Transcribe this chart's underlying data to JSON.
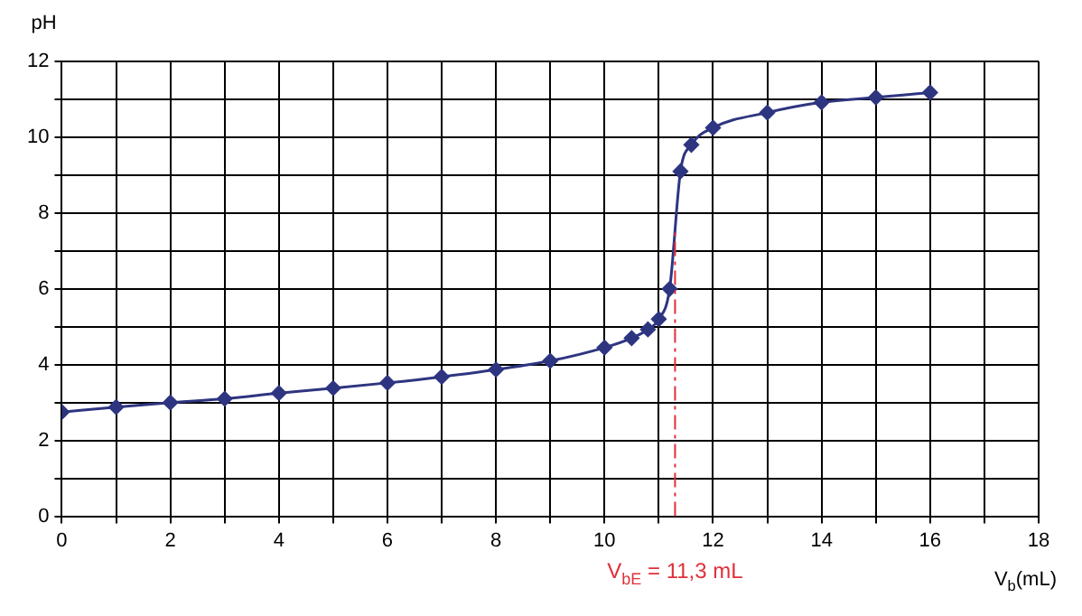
{
  "chart_data": {
    "type": "line",
    "xlabel": "V$_{b}$(mL)",
    "ylabel": "pH",
    "x": [
      0,
      1,
      2,
      3,
      4,
      5,
      6,
      7,
      8,
      9,
      10,
      10.5,
      10.8,
      11,
      11.2,
      11.4,
      11.6,
      12,
      13,
      14,
      15,
      16
    ],
    "series": [
      {
        "color": "#2e3580",
        "values": [
          2.75,
          2.88,
          3.0,
          3.1,
          3.25,
          3.38,
          3.52,
          3.68,
          3.87,
          4.1,
          4.45,
          4.7,
          4.93,
          5.2,
          6.0,
          9.1,
          9.8,
          10.25,
          10.65,
          10.92,
          11.05,
          11.18
        ]
      }
    ],
    "xlim": [
      0,
      18
    ],
    "ylim": [
      0,
      12
    ],
    "xticks": [
      0,
      {
        "value": 1,
        "label": null
      },
      2,
      {
        "value": 3,
        "label": null
      },
      4,
      {
        "value": 5,
        "label": null
      },
      6,
      {
        "value": 7,
        "label": null
      },
      8,
      {
        "value": 9,
        "label": null
      },
      10,
      {
        "value": 11,
        "label": null
      },
      12,
      {
        "value": 13,
        "label": null
      },
      14,
      {
        "value": 15,
        "label": null
      },
      16,
      {
        "value": 17,
        "label": null
      },
      18
    ],
    "yticks": [
      0,
      {
        "value": 1,
        "label": null
      },
      2,
      {
        "value": 3,
        "label": null
      },
      4,
      {
        "value": 5,
        "label": null
      },
      6,
      {
        "value": 7,
        "label": null
      },
      8,
      {
        "value": 9,
        "label": null
      },
      10,
      {
        "value": 11,
        "label": null
      },
      12
    ],
    "ref_lines": [
      {
        "axis": "x",
        "value": 11.3,
        "label": "V$_{bE}$ = 11,3 mL",
        "color": "#e0303a",
        "line_style": "dashdot"
      }
    ],
    "grid": true,
    "legend": false,
    "marker": "diamond",
    "line_style": "solid"
  }
}
